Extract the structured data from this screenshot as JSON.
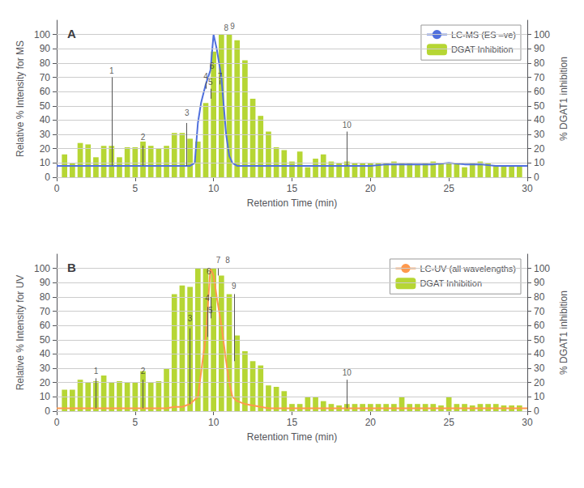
{
  "chart_data": [
    {
      "type": "bar",
      "title": "A",
      "xlabel": "Retention Time (min)",
      "ylabel": "Relative % Intensity for MS",
      "y2label": "% DGAT1 inhibition",
      "series": [
        {
          "name": "LC-MS (ES –ve)",
          "type": "line",
          "x": [
            0,
            0.5,
            1,
            1.5,
            2,
            2.5,
            3,
            3.5,
            4,
            4.5,
            5,
            5.5,
            6,
            6.5,
            7,
            7.5,
            8,
            8.5,
            8.8,
            9,
            9.2,
            9.5,
            9.8,
            10,
            10.2,
            10.5,
            10.8,
            11,
            11.2,
            11.5,
            12,
            12.5,
            13,
            13.5,
            14,
            14.5,
            15,
            15.5,
            16,
            16.5,
            17,
            17.5,
            18,
            19,
            20,
            21,
            22,
            23,
            24,
            25,
            26,
            27,
            28,
            29,
            30
          ],
          "values": [
            8,
            8,
            8,
            8,
            8,
            8,
            8,
            8,
            8,
            8,
            8,
            8,
            8,
            8,
            8,
            8,
            8,
            8,
            10,
            38,
            52,
            65,
            75,
            100,
            90,
            70,
            30,
            15,
            10,
            8,
            8,
            8,
            8,
            8,
            8,
            8,
            8,
            8,
            8,
            8,
            8,
            8,
            8,
            8,
            8,
            9,
            9,
            9,
            9,
            10,
            9,
            9,
            8,
            8,
            8
          ]
        },
        {
          "name": "DGAT Inhibition",
          "type": "bar",
          "axis": "y2",
          "x": [
            0.5,
            1,
            1.5,
            2,
            2.5,
            3,
            3.5,
            4,
            4.5,
            5,
            5.5,
            6,
            6.5,
            7,
            7.5,
            8,
            8.5,
            9,
            9.5,
            10,
            10.5,
            11,
            11.5,
            12,
            12.5,
            13,
            13.5,
            14,
            14.5,
            15,
            15.5,
            16,
            16.5,
            17,
            17.5,
            18,
            18.5,
            19,
            19.5,
            20,
            20.5,
            21,
            21.5,
            22,
            22.5,
            23,
            23.5,
            24,
            24.5,
            25,
            25.5,
            26,
            26.5,
            27,
            27.5,
            28,
            28.5,
            29,
            29.5
          ],
          "values": [
            16,
            10,
            24,
            23,
            14,
            22,
            22,
            14,
            21,
            21,
            25,
            22,
            20,
            22,
            31,
            31,
            27,
            25,
            52,
            88,
            100,
            100,
            96,
            82,
            55,
            43,
            32,
            21,
            19,
            11,
            18,
            7,
            13,
            16,
            11,
            10,
            11,
            10,
            10,
            10,
            10,
            10,
            11,
            10,
            10,
            9,
            10,
            11,
            10,
            10,
            10,
            7,
            10,
            11,
            10,
            8,
            8,
            8,
            8
          ]
        }
      ],
      "annotations": [
        {
          "label": "1",
          "x": 3.5,
          "y": 72
        },
        {
          "label": "2",
          "x": 5.5,
          "y": 25
        },
        {
          "label": "3",
          "x": 8.3,
          "y": 42
        },
        {
          "label": "4",
          "x": 9.5,
          "y": 68
        },
        {
          "label": "5",
          "x": 9.8,
          "y": 64
        },
        {
          "label": "6",
          "x": 9.9,
          "y": 75
        },
        {
          "label": "7",
          "x": 10.4,
          "y": 68
        },
        {
          "label": "8",
          "x": 10.8,
          "y": 102
        },
        {
          "label": "9",
          "x": 11.2,
          "y": 103
        },
        {
          "label": "10",
          "x": 18.5,
          "y": 34
        }
      ],
      "annotation_lines": [
        {
          "x": 3.5,
          "y_start": 8,
          "y_end": 70
        },
        {
          "x": 5.5,
          "y_start": 8,
          "y_end": 22
        },
        {
          "x": 8.3,
          "y_start": 8,
          "y_end": 38
        },
        {
          "x": 9.5,
          "y_start": 62,
          "y_end": 67
        },
        {
          "x": 9.8,
          "y_start": 55,
          "y_end": 62
        },
        {
          "x": 10.4,
          "y_start": 68,
          "y_end": 65
        },
        {
          "x": 18.5,
          "y_start": 8,
          "y_end": 32
        }
      ],
      "xlim": [
        0,
        30
      ],
      "xticks": [
        0,
        5,
        10,
        15,
        20,
        25,
        30
      ],
      "ylim": [
        0,
        110
      ],
      "yticks": [
        0,
        10,
        20,
        30,
        40,
        50,
        60,
        70,
        80,
        90,
        100
      ],
      "y2lim": [
        0,
        110
      ],
      "y2ticks": [
        0,
        10,
        20,
        30,
        40,
        50,
        60,
        70,
        80,
        90,
        100
      ],
      "grid": true,
      "legend": "upper right"
    },
    {
      "type": "bar",
      "title": "B",
      "xlabel": "Retention Time (min)",
      "ylabel": "Relative % Intensity for UV",
      "y2label": "% DGAT1 inhibition",
      "series": [
        {
          "name": "LC-UV (all wavelengths)",
          "type": "line",
          "x": [
            0,
            0.5,
            1,
            1.5,
            2,
            2.5,
            3,
            3.5,
            4,
            4.5,
            5,
            5.5,
            6,
            6.5,
            7,
            7.5,
            8,
            8.5,
            9,
            9.5,
            9.8,
            10,
            10.2,
            10.5,
            10.8,
            11,
            11.2,
            11.5,
            12,
            12.5,
            13,
            13.5,
            14,
            14.5,
            15,
            15.5,
            16,
            16.5,
            17,
            17.5,
            18,
            19,
            20,
            21,
            22,
            23,
            24,
            25,
            26,
            27,
            28,
            29,
            30
          ],
          "values": [
            2,
            2,
            2,
            2,
            2,
            2,
            2,
            2,
            2,
            2,
            2,
            2,
            2,
            2,
            2,
            3,
            3,
            5,
            10,
            52,
            100,
            95,
            80,
            60,
            35,
            20,
            10,
            7,
            5,
            4,
            3,
            2,
            2,
            2,
            2,
            2,
            2,
            2,
            2,
            2,
            2,
            2,
            2,
            2,
            2,
            2,
            2,
            2,
            2,
            2,
            2,
            2,
            2
          ]
        },
        {
          "name": "DGAT Inhibition",
          "type": "bar",
          "axis": "y2",
          "x": [
            0.5,
            1,
            1.5,
            2,
            2.5,
            3,
            3.5,
            4,
            4.5,
            5,
            5.5,
            6,
            6.5,
            7,
            7.5,
            8,
            8.5,
            9,
            9.5,
            10,
            10.5,
            11,
            11.5,
            12,
            12.5,
            13,
            13.5,
            14,
            14.5,
            15,
            15.5,
            16,
            16.5,
            17,
            17.5,
            18,
            18.5,
            19,
            19.5,
            20,
            20.5,
            21,
            21.5,
            22,
            22.5,
            23,
            23.5,
            24,
            24.5,
            25,
            25.5,
            26,
            26.5,
            27,
            27.5,
            28,
            28.5,
            29,
            29.5
          ],
          "values": [
            15,
            15,
            22,
            20,
            21,
            25,
            20,
            21,
            20,
            20,
            28,
            20,
            21,
            30,
            82,
            88,
            87,
            100,
            100,
            100,
            95,
            82,
            53,
            42,
            35,
            32,
            18,
            17,
            14,
            5,
            5,
            10,
            10,
            7,
            5,
            4,
            5,
            5,
            5,
            5,
            5,
            5,
            5,
            10,
            5,
            5,
            5,
            5,
            4,
            10,
            5,
            5,
            4,
            5,
            5,
            5,
            4,
            4,
            4
          ]
        }
      ],
      "annotations": [
        {
          "label": "1",
          "x": 2.5,
          "y": 25
        },
        {
          "label": "2",
          "x": 5.5,
          "y": 25
        },
        {
          "label": "3",
          "x": 8.5,
          "y": 62
        },
        {
          "label": "4",
          "x": 9.6,
          "y": 76
        },
        {
          "label": "5",
          "x": 9.8,
          "y": 68
        },
        {
          "label": "6",
          "x": 9.7,
          "y": 95
        },
        {
          "label": "7",
          "x": 10.3,
          "y": 103
        },
        {
          "label": "8",
          "x": 10.9,
          "y": 103
        },
        {
          "label": "9",
          "x": 11.3,
          "y": 85
        },
        {
          "label": "10",
          "x": 18.5,
          "y": 24
        }
      ],
      "annotation_lines": [
        {
          "x": 2.5,
          "y_start": 2,
          "y_end": 23
        },
        {
          "x": 5.5,
          "y_start": 2,
          "y_end": 22
        },
        {
          "x": 8.5,
          "y_start": 5,
          "y_end": 58
        },
        {
          "x": 9.6,
          "y_start": 52,
          "y_end": 73
        },
        {
          "x": 9.8,
          "y_start": 80,
          "y_end": 65
        },
        {
          "x": 10.3,
          "y_start": 95,
          "y_end": 100
        },
        {
          "x": 11.3,
          "y_start": 35,
          "y_end": 82
        },
        {
          "x": 18.5,
          "y_start": 2,
          "y_end": 22
        }
      ],
      "xlim": [
        0,
        30
      ],
      "xticks": [
        0,
        5,
        10,
        15,
        20,
        25,
        30
      ],
      "ylim": [
        0,
        110
      ],
      "yticks": [
        0,
        10,
        20,
        30,
        40,
        50,
        60,
        70,
        80,
        90,
        100
      ],
      "y2lim": [
        0,
        110
      ],
      "y2ticks": [
        0,
        10,
        20,
        30,
        40,
        50,
        60,
        70,
        80,
        90,
        100
      ],
      "grid": true,
      "legend": "upper right"
    }
  ]
}
